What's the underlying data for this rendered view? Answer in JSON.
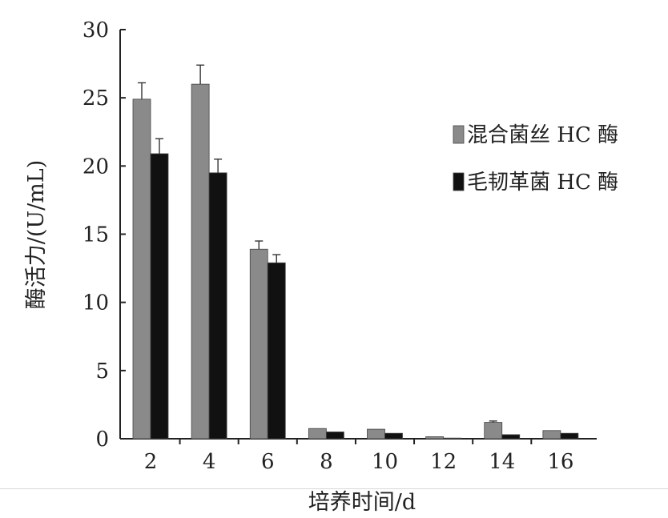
{
  "chart_data": {
    "type": "bar",
    "title": "",
    "xlabel": "培养时间/d",
    "ylabel": "酶活力/(U/mL)",
    "categories": [
      "2",
      "4",
      "6",
      "8",
      "10",
      "12",
      "14",
      "16"
    ],
    "ylim": [
      0,
      30
    ],
    "yticks": [
      0,
      5,
      10,
      15,
      20,
      25,
      30
    ],
    "legend_position": "right",
    "series": [
      {
        "name": "混合菌丝 HC 酶",
        "color": "#8a8a8a",
        "values": [
          24.9,
          26.0,
          13.9,
          0.75,
          0.7,
          0.15,
          1.2,
          0.6
        ],
        "errors": [
          1.2,
          1.4,
          0.6,
          0.0,
          0.0,
          0.0,
          0.1,
          0.0
        ]
      },
      {
        "name": "毛韧革菌 HC 酶",
        "color": "#111111",
        "values": [
          20.9,
          19.5,
          12.9,
          0.5,
          0.4,
          0.05,
          0.3,
          0.4
        ],
        "errors": [
          1.1,
          1.0,
          0.6,
          0.0,
          0.0,
          0.0,
          0.0,
          0.0
        ]
      }
    ]
  }
}
